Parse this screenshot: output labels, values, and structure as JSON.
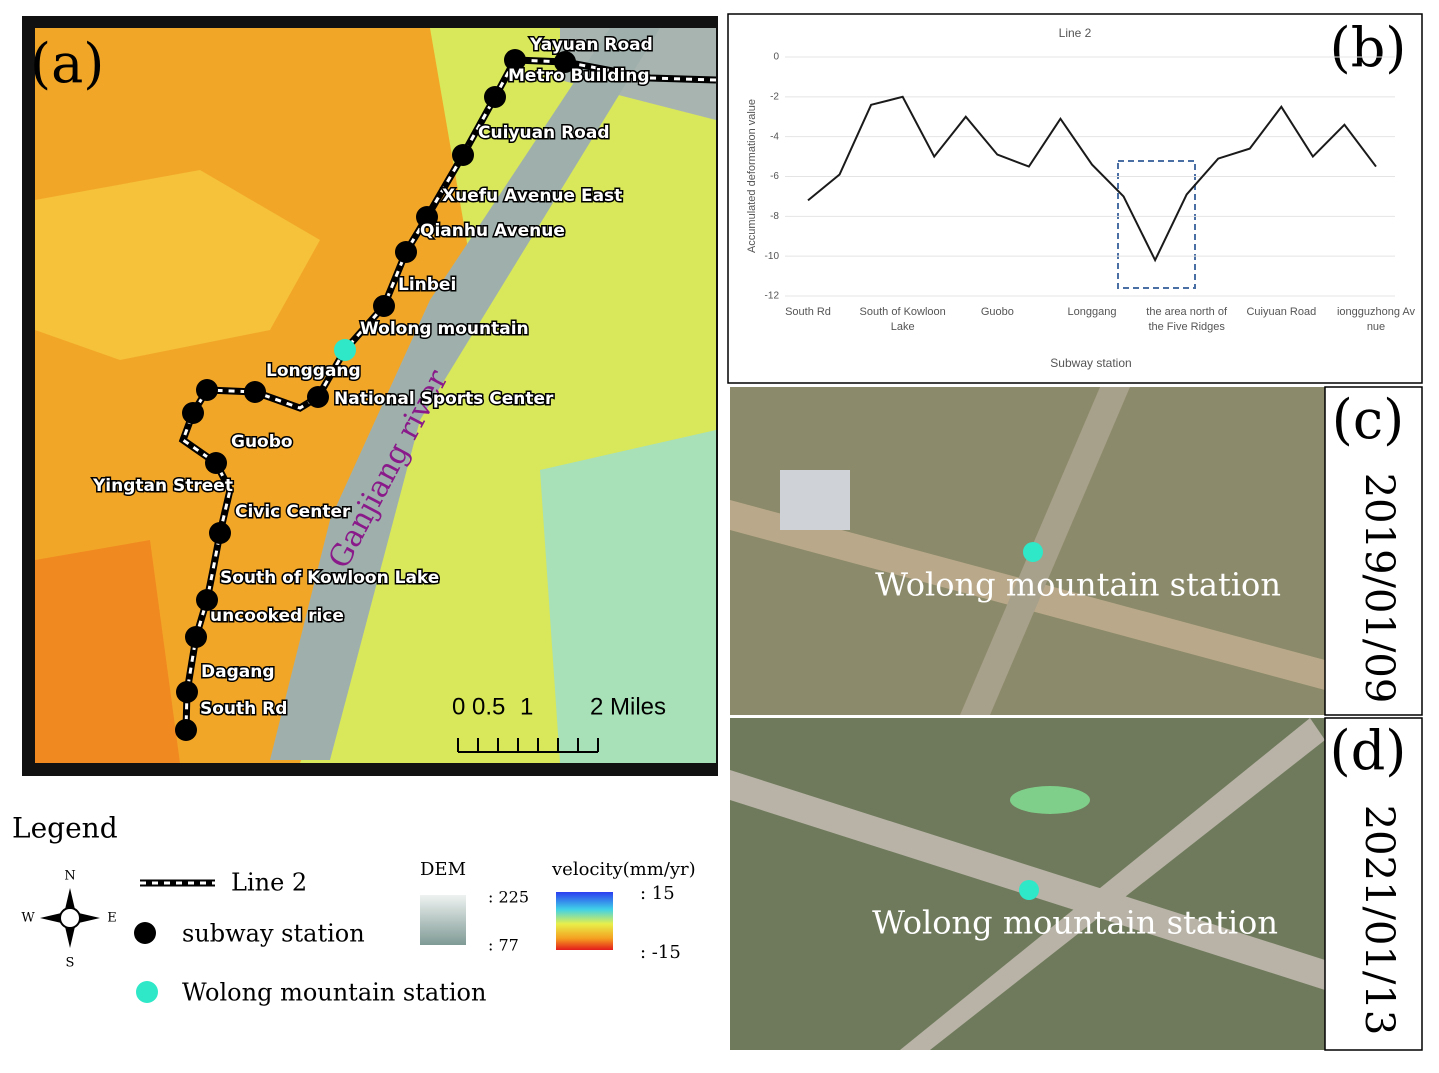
{
  "map": {
    "panel_label": "(a)",
    "stations": [
      "Yayuan Road",
      "Metro Building",
      "Cuiyuan Road",
      "Xuefu Avenue East",
      "Qianhu Avenue",
      "Linbei",
      "Wolong mountain",
      "Longgang",
      "National Sports Center",
      "Guobo",
      "Yingtan Street",
      "Civic Center",
      "South of Kowloon Lake",
      "uncooked rice",
      "Dagang",
      "South Rd"
    ],
    "river_label": "Ganjiang river",
    "scale_labels": [
      "0",
      "0.5",
      "1",
      "2 Miles"
    ]
  },
  "legend": {
    "title": "Legend",
    "compass": [
      "N",
      "E",
      "S",
      "W"
    ],
    "items": [
      "Line 2",
      "subway station",
      "Wolong mountain station"
    ],
    "dem": {
      "title": "DEM",
      "high": ": 225",
      "low": ": 77"
    },
    "velocity": {
      "title": "velocity(mm/yr)",
      "high": ": 15",
      "low": ": -15"
    }
  },
  "chart_data": {
    "type": "line",
    "panel_label": "(b)",
    "title": "Line 2",
    "x_label": "Subway station",
    "y_label": "Accumulated deformation value",
    "categories": [
      "South Rd",
      null,
      null,
      "South of Kowloon Lake",
      null,
      null,
      "Guobo",
      null,
      null,
      "Longgang",
      null,
      null,
      "the area north of the Five Ridges",
      null,
      null,
      "Cuiyuan Road",
      null,
      null,
      "iongguzhong Av nue"
    ],
    "values": [
      -7.2,
      -5.9,
      -2.4,
      -2.0,
      -5.0,
      -3.0,
      -4.9,
      -5.5,
      -3.1,
      -5.4,
      -7.0,
      -10.2,
      -6.9,
      -5.1,
      -4.6,
      -2.5,
      -5.0,
      -3.4,
      -5.5
    ],
    "color": "#1a1a1a",
    "ylim": [
      -12,
      0
    ],
    "yticks": [
      0,
      -2,
      -4,
      -6,
      -8,
      -10,
      -12
    ],
    "grid": true
  },
  "photos": [
    {
      "panel_label": "(c)",
      "date": "2019/01/09",
      "caption": "Wolong mountain station"
    },
    {
      "panel_label": "(d)",
      "date": "2021/01/13",
      "caption": "Wolong mountain station"
    }
  ]
}
